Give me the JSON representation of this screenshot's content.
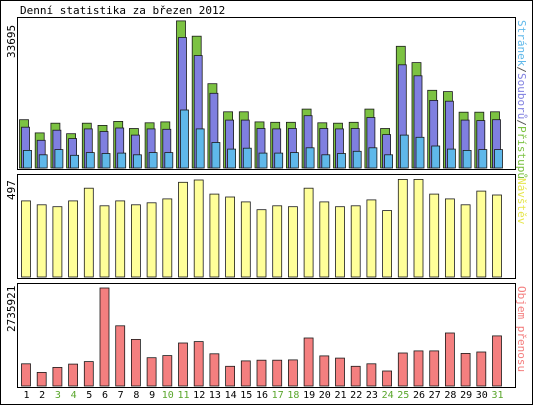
{
  "chart_data": [
    {
      "type": "bar",
      "title": "Denní statistika za březen 2012",
      "ymax_label": "33695",
      "ylim": [
        0,
        33695
      ],
      "right_label_parts": [
        {
          "text": "Stránek",
          "color": "#5fb8ea"
        },
        {
          "text": "/",
          "color": "#555555"
        },
        {
          "text": "Souborů",
          "color": "#7f7fe0"
        },
        {
          "text": "/",
          "color": "#555555"
        },
        {
          "text": "Přístupů",
          "color": "#7cc242"
        }
      ],
      "categories": [
        "1",
        "2",
        "3",
        "4",
        "5",
        "6",
        "7",
        "8",
        "9",
        "10",
        "11",
        "12",
        "13",
        "14",
        "15",
        "16",
        "17",
        "18",
        "19",
        "20",
        "21",
        "22",
        "23",
        "24",
        "25",
        "26",
        "27",
        "28",
        "29",
        "30",
        "31"
      ],
      "series": [
        {
          "name": "Přístupů",
          "color": "#7cc242",
          "values": [
            11000,
            8000,
            10200,
            7800,
            10200,
            9700,
            10600,
            9000,
            10300,
            10500,
            33500,
            30000,
            19200,
            12800,
            12800,
            10500,
            10400,
            10400,
            13400,
            10300,
            10200,
            10400,
            13400,
            9000,
            27700,
            24000,
            17700,
            17400,
            12700,
            12700,
            12800
          ]
        },
        {
          "name": "Souborů",
          "color": "#7f7fe0",
          "values": [
            9300,
            6300,
            8600,
            6700,
            8900,
            8300,
            9100,
            7500,
            8900,
            8800,
            29700,
            25600,
            17000,
            10900,
            10900,
            9000,
            8900,
            9000,
            11900,
            9000,
            8900,
            9000,
            11500,
            7600,
            23500,
            21000,
            15400,
            15200,
            10900,
            10800,
            11000
          ]
        },
        {
          "name": "Stránek",
          "color": "#5fb8ea",
          "values": [
            4000,
            3000,
            4200,
            2900,
            3500,
            3300,
            3400,
            3000,
            3500,
            3500,
            13200,
            8900,
            5800,
            4300,
            4500,
            3400,
            3400,
            3500,
            4600,
            3000,
            3300,
            3800,
            4600,
            3000,
            7500,
            7000,
            5000,
            4300,
            4000,
            4200,
            4200
          ]
        }
      ]
    },
    {
      "type": "bar",
      "ymax_label": "497",
      "ylim": [
        0,
        497
      ],
      "right_label_parts": [
        {
          "text": "Návštěv",
          "color": "#e6e64e"
        }
      ],
      "categories": [
        "1",
        "2",
        "3",
        "4",
        "5",
        "6",
        "7",
        "8",
        "9",
        "10",
        "11",
        "12",
        "13",
        "14",
        "15",
        "16",
        "17",
        "18",
        "19",
        "20",
        "21",
        "22",
        "23",
        "24",
        "25",
        "26",
        "27",
        "28",
        "29",
        "30",
        "31"
      ],
      "series": [
        {
          "name": "Návštěv",
          "color": "#ffff99",
          "values": [
            390,
            370,
            360,
            390,
            455,
            365,
            390,
            370,
            380,
            400,
            485,
            497,
            425,
            410,
            385,
            345,
            365,
            360,
            455,
            385,
            360,
            365,
            395,
            340,
            500,
            500,
            425,
            400,
            370,
            440,
            420
          ]
        }
      ]
    },
    {
      "type": "bar",
      "ymax_label": "2735921",
      "ylim": [
        0,
        2735921
      ],
      "right_label_parts": [
        {
          "text": "Objem přenosu",
          "color": "#f47f7f"
        }
      ],
      "categories": [
        "1",
        "2",
        "3",
        "4",
        "5",
        "6",
        "7",
        "8",
        "9",
        "10",
        "11",
        "12",
        "13",
        "14",
        "15",
        "16",
        "17",
        "18",
        "19",
        "20",
        "21",
        "22",
        "23",
        "24",
        "25",
        "26",
        "27",
        "28",
        "29",
        "30",
        "31"
      ],
      "series": [
        {
          "name": "Objem přenosu",
          "color": "#f47f7f",
          "values": [
            620000,
            380000,
            520000,
            610000,
            680000,
            2735921,
            1680000,
            1300000,
            790000,
            850000,
            1200000,
            1240000,
            900000,
            550000,
            700000,
            720000,
            720000,
            730000,
            1340000,
            840000,
            780000,
            550000,
            620000,
            420000,
            920000,
            980000,
            980000,
            1480000,
            910000,
            950000,
            1400000
          ]
        }
      ]
    }
  ],
  "x_label_colors": [
    "#000000",
    "#000000",
    "#59a62b",
    "#59a62b",
    "#000000",
    "#000000",
    "#000000",
    "#000000",
    "#000000",
    "#59a62b",
    "#59a62b",
    "#000000",
    "#000000",
    "#000000",
    "#000000",
    "#000000",
    "#59a62b",
    "#59a62b",
    "#000000",
    "#000000",
    "#000000",
    "#000000",
    "#000000",
    "#59a62b",
    "#59a62b",
    "#000000",
    "#000000",
    "#000000",
    "#000000",
    "#000000",
    "#59a62b"
  ]
}
